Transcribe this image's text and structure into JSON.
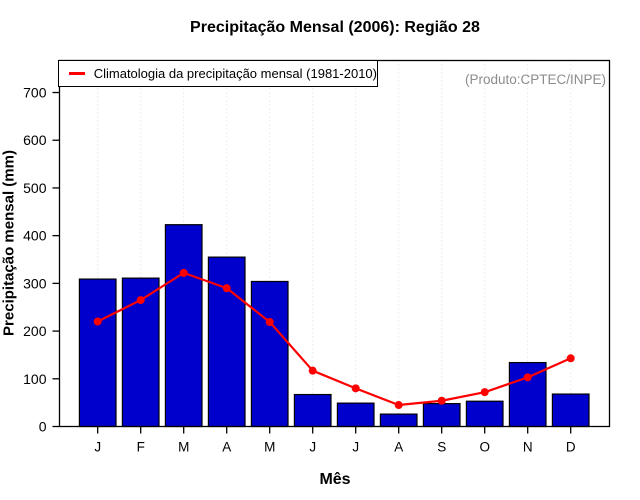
{
  "title": "Precipitação Mensal (2006): Região 28",
  "watermark": "(Produto:CPTEC/INPE)",
  "legend": {
    "label": "Climatologia da precipitação mensal (1981-2010)"
  },
  "axes": {
    "ylabel": "Precipitação mensal (mm)",
    "xlabel": "Mês",
    "yticks": [
      0,
      100,
      200,
      300,
      400,
      500,
      600,
      700
    ]
  },
  "colors": {
    "bar": "#0000CD",
    "bar_border": "#000000",
    "line": "#FF0000",
    "grid": "#DCDCDC",
    "frame": "#000000",
    "watermark": "#8C8C8C",
    "background": "#FFFFFF"
  },
  "chart_data": {
    "type": "bar",
    "title": "Precipitação Mensal (2006): Região 28",
    "xlabel": "Mês",
    "ylabel": "Precipitação mensal (mm)",
    "categories": [
      "J",
      "F",
      "M",
      "A",
      "M",
      "J",
      "J",
      "A",
      "S",
      "O",
      "N",
      "D"
    ],
    "series": [
      {
        "name": "Precipitação mensal (2006)",
        "type": "bar",
        "color": "#0000CD",
        "values": [
          309,
          311,
          423,
          355,
          304,
          67,
          49,
          26,
          48,
          53,
          134,
          68
        ]
      },
      {
        "name": "Climatologia da precipitação mensal (1981-2010)",
        "type": "line",
        "color": "#FF0000",
        "values": [
          220,
          265,
          322,
          290,
          219,
          117,
          80,
          45,
          54,
          72,
          103,
          143
        ]
      }
    ],
    "ylim": [
      0,
      765
    ],
    "yticks": [
      0,
      100,
      200,
      300,
      400,
      500,
      600,
      700
    ],
    "grid": "vertical-dotted",
    "legend_position": "top-left",
    "annotations": [
      "(Produto:CPTEC/INPE)"
    ]
  }
}
